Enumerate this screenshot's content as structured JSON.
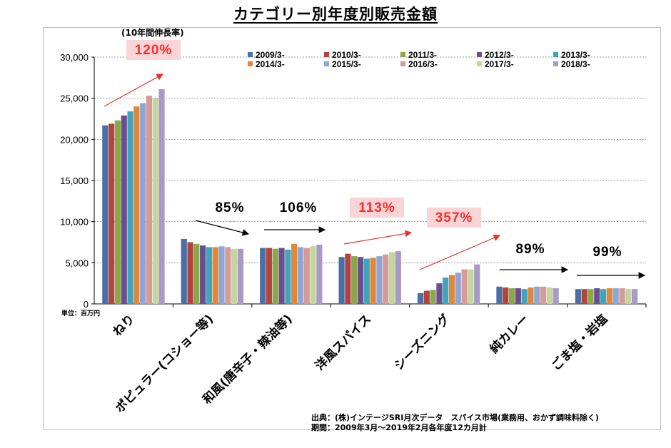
{
  "chart_data": {
    "type": "bar",
    "title": "カテゴリー別年度別販売金額",
    "growth_header": "(10年間伸長率)",
    "unit_label": "単位：百万円",
    "ylim": [
      0,
      30000
    ],
    "yticks": [
      "0",
      "5,000",
      "10,000",
      "15,000",
      "20,000",
      "25,000",
      "30,000"
    ],
    "ytick_values": [
      0,
      5000,
      10000,
      15000,
      20000,
      25000,
      30000
    ],
    "grid": true,
    "legend_position": "top-right",
    "categories": [
      "ねり",
      "ポピュラー(コショー等)",
      "和風(唐辛子・辣油等)",
      "洋風スパイス",
      "シーズニング",
      "純カレー",
      "ごま塩・岩塩"
    ],
    "series": [
      {
        "name": "2009/3-",
        "color": "#4a6fa5",
        "values": [
          21700,
          7900,
          6800,
          5700,
          1300,
          2100,
          1800
        ]
      },
      {
        "name": "2010/3-",
        "color": "#b2433f",
        "values": [
          21900,
          7500,
          6800,
          6100,
          1600,
          2000,
          1800
        ]
      },
      {
        "name": "2011/3-",
        "color": "#8aa84a",
        "values": [
          22300,
          7300,
          6700,
          5800,
          1700,
          1900,
          1800
        ]
      },
      {
        "name": "2012/3-",
        "color": "#6b4e8e",
        "values": [
          22900,
          7100,
          6800,
          5700,
          2500,
          1900,
          1900
        ]
      },
      {
        "name": "2013/3-",
        "color": "#3fa4bd",
        "values": [
          23400,
          6900,
          6600,
          5500,
          3200,
          1800,
          1800
        ]
      },
      {
        "name": "2014/3-",
        "color": "#e0873a",
        "values": [
          24000,
          6900,
          7300,
          5600,
          3500,
          2000,
          1900
        ]
      },
      {
        "name": "2015/3-",
        "color": "#8ea6d6",
        "values": [
          24400,
          7000,
          6900,
          5800,
          3800,
          2100,
          1900
        ]
      },
      {
        "name": "2016/3-",
        "color": "#d79a97",
        "values": [
          25300,
          6900,
          6800,
          6000,
          4200,
          2100,
          1900
        ]
      },
      {
        "name": "2017/3-",
        "color": "#c3d69c",
        "values": [
          25000,
          6700,
          7000,
          6300,
          4200,
          2000,
          1800
        ]
      },
      {
        "name": "2018/3-",
        "color": "#a999c6",
        "values": [
          26100,
          6700,
          7200,
          6400,
          4800,
          1900,
          1800
        ]
      }
    ],
    "growth_rates": [
      {
        "label": "120%",
        "highlight": true
      },
      {
        "label": "85%",
        "highlight": false
      },
      {
        "label": "106%",
        "highlight": false
      },
      {
        "label": "113%",
        "highlight": true
      },
      {
        "label": "357%",
        "highlight": true
      },
      {
        "label": "89%",
        "highlight": false
      },
      {
        "label": "99%",
        "highlight": false
      }
    ],
    "source_line1": "出典：(株)インテージSRI月次データ　スパイス市場(業務用、おかず調味料除く)",
    "source_line2": "期間：2009年3月～2019年2月各年度12カ月計",
    "colors": {
      "highlight_bg": "#fbd5d5",
      "highlight_text": "#ff2a2a",
      "up_arrow": "#e8322a",
      "flat_arrow": "#000000",
      "grid": "#9a9a9a",
      "axis": "#000000"
    }
  }
}
